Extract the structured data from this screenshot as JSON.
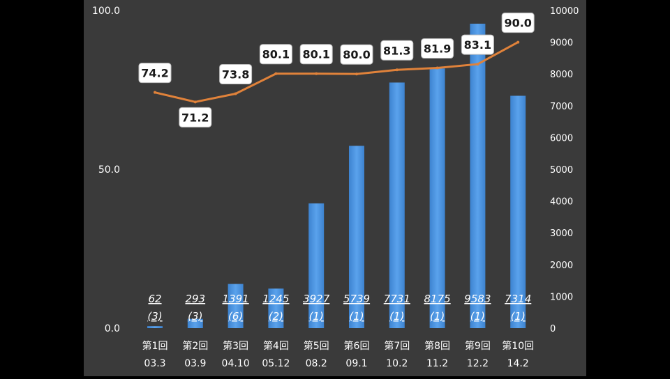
{
  "chart_data": {
    "type": "bar+line",
    "title": "",
    "categories": [
      "第1回",
      "第2回",
      "第3回",
      "第4回",
      "第5回",
      "第6回",
      "第7回",
      "第8回",
      "第9回",
      "第10回"
    ],
    "sublabels": [
      "03.3",
      "03.9",
      "04.10",
      "05.12",
      "08.2",
      "09.1",
      "10.2",
      "11.2",
      "12.2",
      "14.2"
    ],
    "bars": {
      "name": "",
      "axis": "right",
      "values": [
        62,
        293,
        1391,
        1245,
        3927,
        5739,
        7731,
        8175,
        9583,
        7314
      ],
      "counts": [
        "(3)",
        "(3)",
        "(6)",
        "(2)",
        "(1)",
        "(1)",
        "(1)",
        "(1)",
        "(1)",
        "(1)"
      ],
      "color": "#4a90d9"
    },
    "line": {
      "name": "",
      "axis": "left",
      "values": [
        74.2,
        71.2,
        73.8,
        80.1,
        80.1,
        80.0,
        81.3,
        81.9,
        83.1,
        90.0
      ],
      "labels": [
        "74.2",
        "71.2",
        "73.8",
        "80.1",
        "80.1",
        "80.0",
        "81.3",
        "81.9",
        "83.1",
        "90.0"
      ],
      "color": "#e0823a"
    },
    "left_axis": {
      "min": 0,
      "max": 100,
      "ticks": [
        "0.0",
        "50.0",
        "100.0"
      ]
    },
    "right_axis": {
      "min": 0,
      "max": 10000,
      "ticks": [
        "0",
        "1000",
        "2000",
        "3000",
        "4000",
        "5000",
        "6000",
        "7000",
        "8000",
        "9000",
        "10000"
      ]
    },
    "grid": false,
    "legend": "none"
  },
  "colors": {
    "background": "#3a3a3a",
    "text": "#ffffff",
    "letterbox": "#000000"
  }
}
